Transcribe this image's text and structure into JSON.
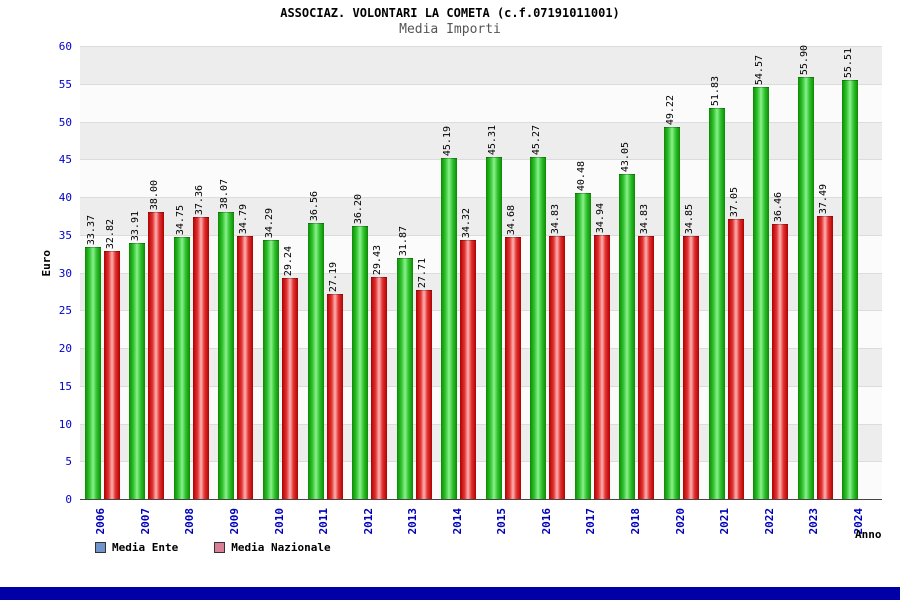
{
  "header": {
    "title": "ASSOCIAZ. VOLONTARI LA COMETA (c.f.07191011001)",
    "subtitle": "Media Importi"
  },
  "chart_data": {
    "type": "bar",
    "title": "Media Importi",
    "categories": [
      "2006",
      "2007",
      "2008",
      "2009",
      "2010",
      "2011",
      "2012",
      "2013",
      "2014",
      "2015",
      "2016",
      "2017",
      "2018",
      "2020",
      "2021",
      "2022",
      "2023",
      "2024"
    ],
    "series": [
      {
        "name": "Media Ente",
        "color": "#22bb22",
        "values": [
          33.37,
          33.91,
          34.75,
          38.07,
          34.29,
          36.56,
          36.2,
          31.87,
          45.19,
          45.31,
          45.27,
          40.48,
          43.05,
          49.22,
          51.83,
          54.57,
          55.9,
          55.51
        ]
      },
      {
        "name": "Media Nazionale",
        "color": "#e03030",
        "values": [
          32.82,
          38.0,
          37.36,
          34.79,
          29.24,
          27.19,
          29.43,
          27.71,
          34.32,
          34.68,
          34.83,
          34.94,
          34.83,
          34.85,
          37.05,
          36.46,
          37.49,
          null
        ]
      }
    ],
    "xlabel": "Anno",
    "ylabel": "Euro",
    "ylim": [
      0,
      60
    ],
    "ytick_step": 5,
    "grid": true,
    "legend_position": "bottom-left",
    "band_colors": [
      "#fbfbfb",
      "#ededed"
    ],
    "label_color_axis": "#0000bb"
  },
  "footer": {}
}
